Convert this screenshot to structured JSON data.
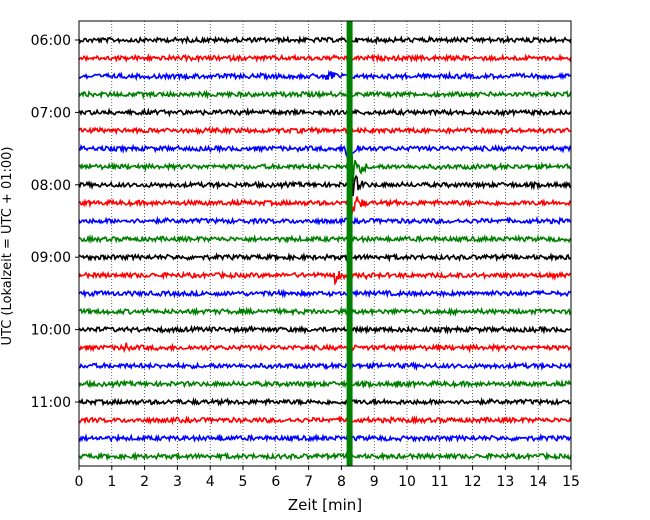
{
  "chart_data": {
    "type": "line",
    "subtype": "helicorder",
    "xlabel": "Zeit  [min]",
    "ylabel": "UTC (Lokalzeit = UTC + 01:00)",
    "xlim": [
      0,
      15
    ],
    "x_ticks": [
      "0",
      "1",
      "2",
      "3",
      "4",
      "5",
      "6",
      "7",
      "8",
      "9",
      "10",
      "11",
      "12",
      "13",
      "14",
      "15"
    ],
    "y_tick_labels": [
      "06:00",
      "07:00",
      "08:00",
      "09:00",
      "10:00",
      "11:00"
    ],
    "grid": "vertical dotted",
    "trace_interval_minutes": 15,
    "trace_count": 24,
    "start_time": "06:00",
    "color_cycle": [
      "#000000",
      "#ff0000",
      "#0000ff",
      "#008000"
    ],
    "events": [
      {
        "trace": 2,
        "time_min": 7.6,
        "amplitude": "moderate"
      },
      {
        "trace": 3,
        "time_min": 6.8,
        "amplitude": "small"
      },
      {
        "trace": 6,
        "time_min": 8.2,
        "amplitude": "large"
      },
      {
        "trace": 7,
        "time_min": 8.3,
        "amplitude": "very large"
      },
      {
        "trace": 8,
        "time_min": 8.3,
        "amplitude": "large"
      },
      {
        "trace": 9,
        "time_min": 8.3,
        "amplitude": "large"
      },
      {
        "trace": 11,
        "time_min": 6.4,
        "amplitude": "small"
      },
      {
        "trace": 13,
        "time_min": 7.8,
        "amplitude": "moderate"
      },
      {
        "trace": 13,
        "time_min": 8.7,
        "amplitude": "small"
      },
      {
        "trace": 17,
        "time_min": 1.4,
        "amplitude": "spike"
      },
      {
        "trace": 19,
        "time_min": 9.7,
        "amplitude": "small"
      },
      {
        "trace": 22,
        "time_min": 4.3,
        "amplitude": "small"
      }
    ],
    "continuous_marker": {
      "time_min": 8.25,
      "color": "#008000",
      "note": "vertical band across all traces"
    }
  }
}
